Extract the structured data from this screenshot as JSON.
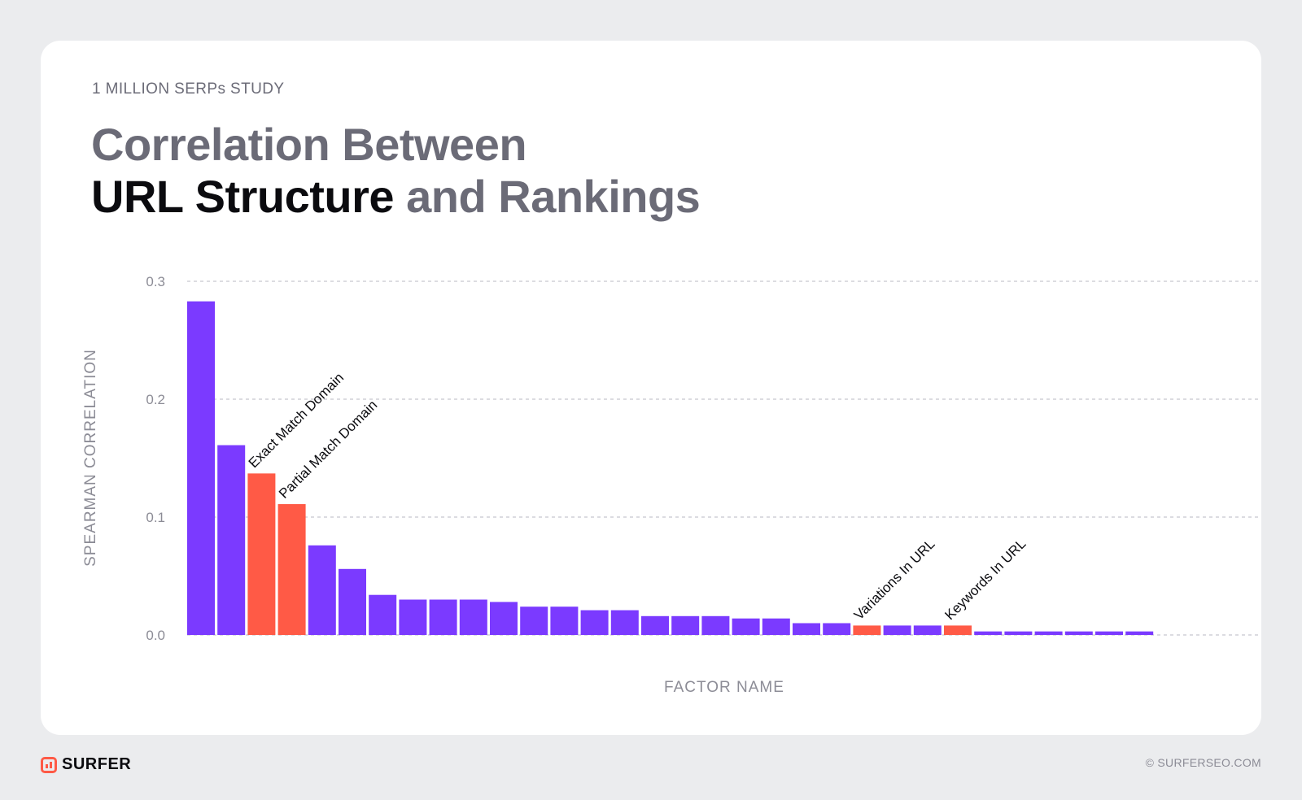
{
  "header": {
    "eyebrow": "1 MILLION SERPs STUDY",
    "title_line1": "Correlation Between",
    "title_highlight": "URL Structure",
    "title_rest": " and Rankings"
  },
  "colors": {
    "default_bar": "#7b3aff",
    "highlight_bar": "#ff5a46",
    "grid": "#c8c8cf",
    "axis_text": "#8c8c96"
  },
  "chart_data": {
    "type": "bar",
    "title": "Correlation Between URL Structure and Rankings",
    "xlabel": "FACTOR NAME",
    "ylabel": "SPEARMAN CORRELATION",
    "ylim": [
      0,
      0.3
    ],
    "yticks": [
      "0.0",
      "0.1",
      "0.2",
      "0.3"
    ],
    "grid": true,
    "values": [
      0.283,
      0.161,
      0.137,
      0.111,
      0.076,
      0.056,
      0.034,
      0.03,
      0.03,
      0.03,
      0.028,
      0.024,
      0.024,
      0.021,
      0.021,
      0.016,
      0.016,
      0.016,
      0.014,
      0.014,
      0.01,
      0.01,
      0.008,
      0.008,
      0.008,
      0.008,
      0.003,
      0.003,
      0.003,
      0.003,
      0.003,
      0.003
    ],
    "highlighted": [
      2,
      3,
      22,
      25
    ],
    "annotations": [
      {
        "index": 2,
        "label": "Exact Match Domain"
      },
      {
        "index": 3,
        "label": "Partial Match Domain"
      },
      {
        "index": 22,
        "label": "Variations In URL"
      },
      {
        "index": 25,
        "label": "Keywords In URL"
      }
    ]
  },
  "footer": {
    "brand": "SURFER",
    "copyright": "© SURFERSEO.COM"
  }
}
